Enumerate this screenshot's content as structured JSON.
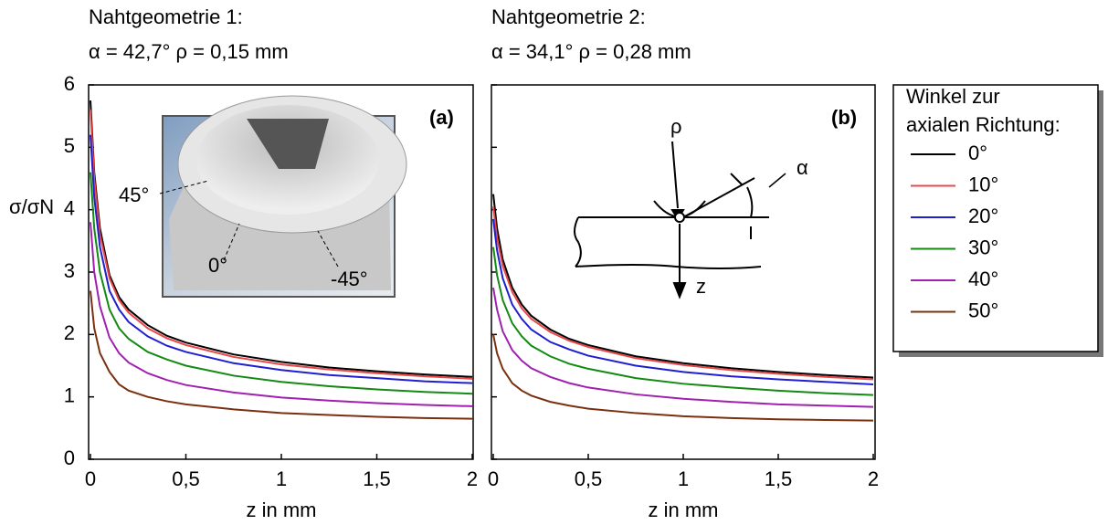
{
  "chart_data": [
    {
      "type": "line",
      "title": "Nahtgeometrie 1:",
      "subtitle": "α = 42,7°  ρ = 0,15 mm",
      "xlabel": "z in mm",
      "ylabel": "σ/σN",
      "x": [
        0,
        0.02,
        0.05,
        0.1,
        0.15,
        0.2,
        0.3,
        0.4,
        0.5,
        0.75,
        1,
        1.25,
        1.5,
        1.75,
        2
      ],
      "xlim": [
        0,
        2
      ],
      "ylim": [
        0,
        6
      ],
      "xticks": [
        0,
        {
          "value": 0.5,
          "label": "0,5"
        },
        1,
        {
          "value": 1.5,
          "label": "1,5"
        },
        2
      ],
      "yticks": [
        0,
        1,
        2,
        3,
        4,
        5,
        6
      ],
      "legend_title": [
        "Winkel zur",
        "axialen Richtung:"
      ],
      "annotations": [
        "(a)",
        "45°",
        "0°",
        "-45°"
      ],
      "series": [
        {
          "name": "0°",
          "color": "#000000",
          "values": [
            5.75,
            4.6,
            3.7,
            2.95,
            2.6,
            2.4,
            2.15,
            1.98,
            1.87,
            1.68,
            1.56,
            1.47,
            1.41,
            1.36,
            1.32
          ]
        },
        {
          "name": "10°",
          "color": "#e8484a",
          "values": [
            5.6,
            4.5,
            3.6,
            2.9,
            2.55,
            2.35,
            2.1,
            1.94,
            1.83,
            1.64,
            1.52,
            1.44,
            1.38,
            1.33,
            1.29
          ]
        },
        {
          "name": "20°",
          "color": "#1f1fd0",
          "values": [
            5.2,
            4.2,
            3.4,
            2.7,
            2.4,
            2.2,
            1.97,
            1.82,
            1.72,
            1.54,
            1.43,
            1.35,
            1.3,
            1.25,
            1.22
          ]
        },
        {
          "name": "30°",
          "color": "#138a13",
          "values": [
            4.6,
            3.7,
            3.0,
            2.4,
            2.1,
            1.93,
            1.72,
            1.6,
            1.5,
            1.34,
            1.24,
            1.17,
            1.12,
            1.08,
            1.05
          ]
        },
        {
          "name": "40°",
          "color": "#a020b0",
          "values": [
            3.8,
            3.0,
            2.45,
            1.95,
            1.7,
            1.55,
            1.38,
            1.27,
            1.19,
            1.07,
            0.99,
            0.94,
            0.9,
            0.87,
            0.85
          ]
        },
        {
          "name": "50°",
          "color": "#7a3010",
          "values": [
            2.7,
            2.1,
            1.7,
            1.4,
            1.2,
            1.1,
            1.0,
            0.93,
            0.88,
            0.8,
            0.74,
            0.71,
            0.68,
            0.66,
            0.65
          ]
        }
      ]
    },
    {
      "type": "line",
      "title": "Nahtgeometrie 2:",
      "subtitle": "α = 34,1°  ρ = 0,28 mm",
      "xlabel": "z in mm",
      "x": [
        0,
        0.02,
        0.05,
        0.1,
        0.15,
        0.2,
        0.3,
        0.4,
        0.5,
        0.75,
        1,
        1.25,
        1.5,
        1.75,
        2
      ],
      "xlim": [
        0,
        2
      ],
      "ylim": [
        0,
        6
      ],
      "xticks": [
        0,
        {
          "value": 0.5,
          "label": "0,5"
        },
        1,
        {
          "value": 1.5,
          "label": "1,5"
        },
        2
      ],
      "yticks": [
        0,
        1,
        2,
        3,
        4,
        5,
        6
      ],
      "annotations": [
        "(b)",
        "ρ",
        "α",
        "z"
      ],
      "series": [
        {
          "color": "#000000",
          "values": [
            4.25,
            3.7,
            3.2,
            2.75,
            2.48,
            2.3,
            2.08,
            1.93,
            1.83,
            1.65,
            1.54,
            1.46,
            1.4,
            1.35,
            1.31
          ]
        },
        {
          "color": "#e8484a",
          "values": [
            4.05,
            3.55,
            3.1,
            2.68,
            2.42,
            2.25,
            2.04,
            1.9,
            1.8,
            1.62,
            1.51,
            1.43,
            1.37,
            1.32,
            1.28
          ]
        },
        {
          "color": "#1f1fd0",
          "values": [
            3.85,
            3.35,
            2.9,
            2.48,
            2.25,
            2.08,
            1.88,
            1.76,
            1.66,
            1.5,
            1.4,
            1.33,
            1.28,
            1.24,
            1.2
          ]
        },
        {
          "color": "#138a13",
          "values": [
            3.4,
            2.95,
            2.55,
            2.18,
            1.97,
            1.82,
            1.65,
            1.53,
            1.45,
            1.3,
            1.21,
            1.15,
            1.1,
            1.06,
            1.03
          ]
        },
        {
          "color": "#a020b0",
          "values": [
            2.75,
            2.4,
            2.05,
            1.75,
            1.58,
            1.46,
            1.32,
            1.22,
            1.15,
            1.04,
            0.97,
            0.92,
            0.88,
            0.86,
            0.84
          ]
        },
        {
          "color": "#7a3010",
          "values": [
            2.0,
            1.7,
            1.45,
            1.22,
            1.1,
            1.02,
            0.92,
            0.86,
            0.81,
            0.74,
            0.69,
            0.66,
            0.64,
            0.63,
            0.62
          ]
        }
      ]
    }
  ]
}
